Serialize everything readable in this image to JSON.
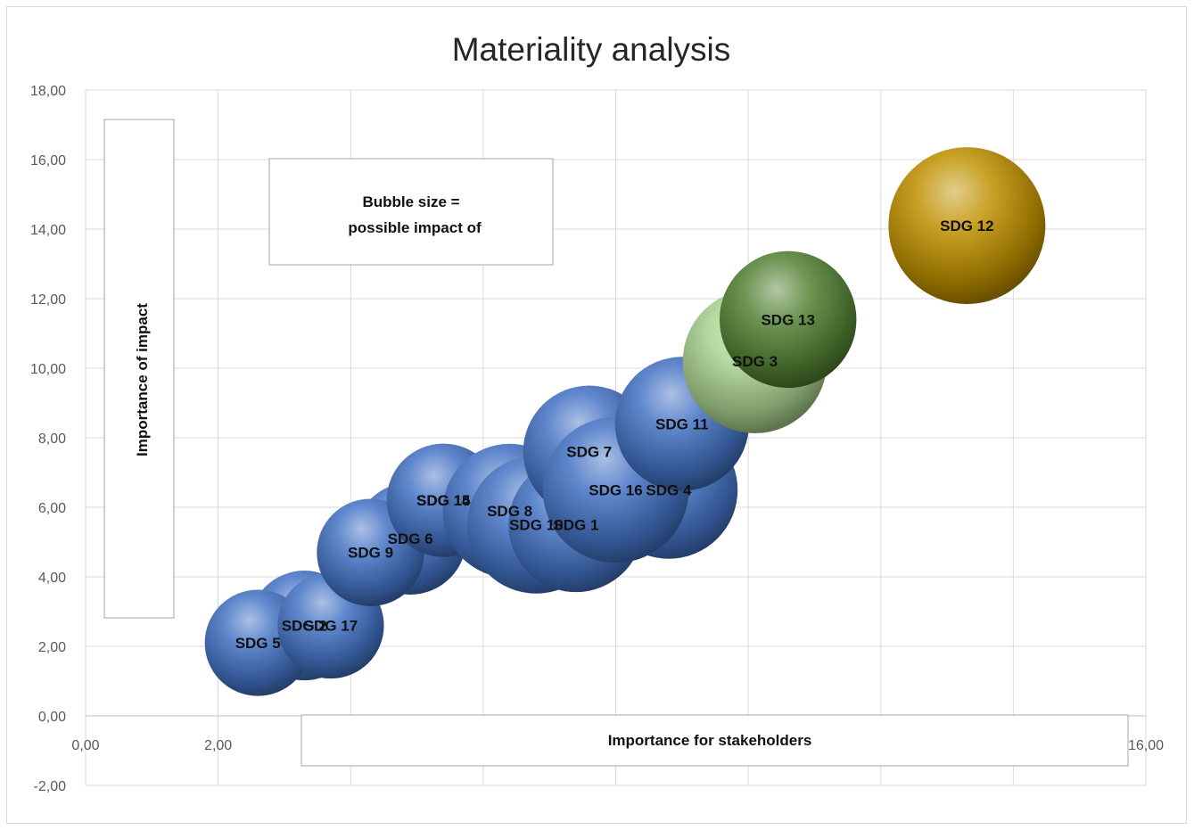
{
  "chart_data": {
    "type": "bubble",
    "title": "Materiality analysis",
    "xlabel": "Importance for stakeholders",
    "ylabel": "Importance of impact",
    "note_lines": [
      "Bubble size =",
      "possible impact of"
    ],
    "xlim": [
      0,
      16
    ],
    "ylim": [
      -2,
      18
    ],
    "x_ticks": [
      0,
      2,
      4,
      6,
      8,
      10,
      12,
      14,
      16
    ],
    "y_ticks": [
      -2,
      0,
      2,
      4,
      6,
      8,
      10,
      12,
      14,
      16,
      18
    ],
    "x_tick_labels": [
      "0,00",
      "2,00",
      "",
      "",
      "",
      "",
      "",
      "",
      "16,00"
    ],
    "y_tick_labels": [
      "-2,00",
      "0,00",
      "2,00",
      "4,00",
      "6,00",
      "8,00",
      "10,00",
      "12,00",
      "14,00",
      "16,00",
      "18,00"
    ],
    "grid": true,
    "points": [
      {
        "label": "SDG 2",
        "x": 3.3,
        "y": 2.6,
        "size": 4.7,
        "color": "#4472c4"
      },
      {
        "label": "SDG 5",
        "x": 2.6,
        "y": 2.1,
        "size": 4.4,
        "color": "#4472c4"
      },
      {
        "label": "SDG 17",
        "x": 3.7,
        "y": 2.6,
        "size": 4.4,
        "color": "#4472c4"
      },
      {
        "label": "SDG 6",
        "x": 4.9,
        "y": 5.1,
        "size": 4.9,
        "color": "#4472c4"
      },
      {
        "label": "SDG 9",
        "x": 4.3,
        "y": 4.7,
        "size": 4.5,
        "color": "#4472c4"
      },
      {
        "label": "SDG 14",
        "x": 5.4,
        "y": 6.2,
        "size": 5.0,
        "color": "#4472c4"
      },
      {
        "label": "SDG 15",
        "x": 5.4,
        "y": 6.2,
        "size": 5.0,
        "color": "#4472c4"
      },
      {
        "label": "SDG 8",
        "x": 6.4,
        "y": 5.9,
        "size": 7.0,
        "color": "#4472c4"
      },
      {
        "label": "SDG 10",
        "x": 6.8,
        "y": 5.5,
        "size": 7.4,
        "color": "#4472c4"
      },
      {
        "label": "SDG 1",
        "x": 7.4,
        "y": 5.5,
        "size": 7.1,
        "color": "#4472c4"
      },
      {
        "label": "SDG 7",
        "x": 7.6,
        "y": 7.6,
        "size": 6.8,
        "color": "#4472c4"
      },
      {
        "label": "SDG 4",
        "x": 8.8,
        "y": 6.5,
        "size": 7.4,
        "color": "#4472c4"
      },
      {
        "label": "SDG 16",
        "x": 8.0,
        "y": 6.5,
        "size": 8.3,
        "color": "#4472c4"
      },
      {
        "label": "SDG 11",
        "x": 9.0,
        "y": 8.4,
        "size": 7.0,
        "color": "#4472c4"
      },
      {
        "label": "SDG 3",
        "x": 10.1,
        "y": 10.2,
        "size": 8.1,
        "color": "#a9d18e"
      },
      {
        "label": "SDG 13",
        "x": 10.6,
        "y": 11.4,
        "size": 7.3,
        "color": "#548235"
      },
      {
        "label": "SDG 12",
        "x": 13.3,
        "y": 14.1,
        "size": 9.6,
        "color": "#bf9000"
      }
    ]
  }
}
